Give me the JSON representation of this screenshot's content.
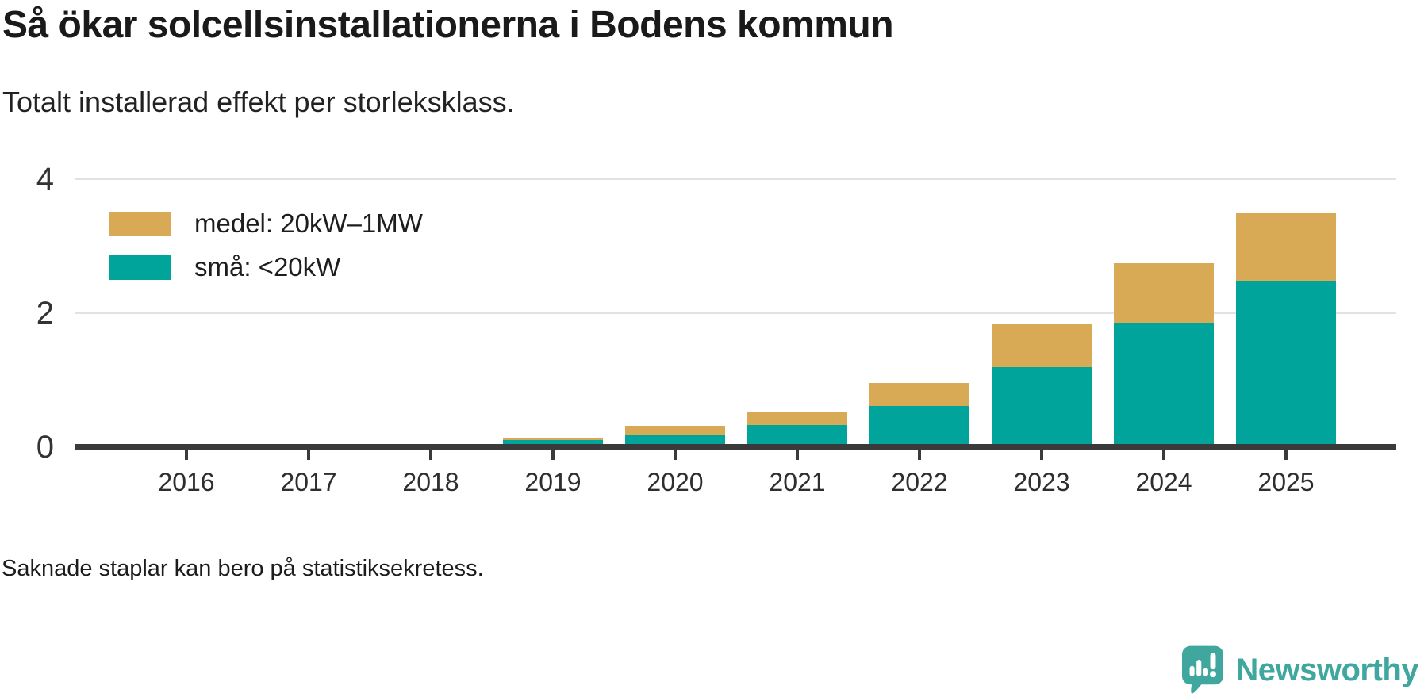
{
  "header": {
    "title": "Så ökar solcellsinstallationerna i Bodens kommun",
    "subtitle": "Totalt installerad effekt per storleksklass."
  },
  "chart_data": {
    "type": "bar",
    "stacked": true,
    "categories": [
      "2016",
      "2017",
      "2018",
      "2019",
      "2020",
      "2021",
      "2022",
      "2023",
      "2024",
      "2025"
    ],
    "series": [
      {
        "name": "medel: 20kW–1MW",
        "color": "#d9aa55",
        "values": [
          null,
          0,
          0,
          0.03,
          0.13,
          0.2,
          0.35,
          0.64,
          0.89,
          1.01
        ]
      },
      {
        "name": "små: <20kW",
        "color": "#00a49a",
        "values": [
          null,
          0.03,
          0.05,
          0.11,
          0.19,
          0.33,
          0.61,
          1.2,
          1.86,
          2.49
        ]
      }
    ],
    "xlabel": "",
    "ylabel": "",
    "ylim": [
      0,
      4
    ],
    "yticks": [
      0,
      2,
      4
    ],
    "grid": "horizontal",
    "legend_position": "top-left",
    "missing_categories": [
      "2016"
    ]
  },
  "footnote": "Saknade staplar kan bero på statistiksekretess.",
  "logo": {
    "text": "Newsworthy",
    "color": "#3fa79e",
    "icon": "speech-bubble-bar-chart-icon"
  }
}
